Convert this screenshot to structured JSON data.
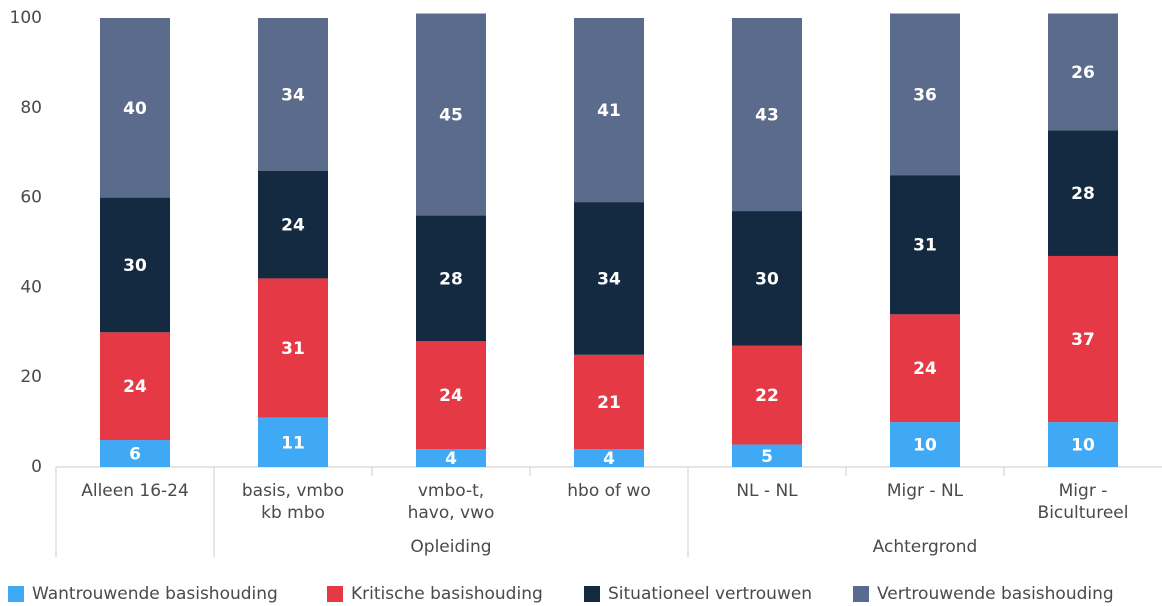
{
  "chart_data": {
    "type": "stacked_bar",
    "categories": [
      "Alleen 16-24",
      "basis, vmbo\nkb mbo",
      "vmbo-t,\nhavo, vwo",
      "hbo of wo",
      "NL - NL",
      "Migr - NL",
      "Migr -\nBicultureel"
    ],
    "groups": [
      {
        "label": "Opleiding",
        "start": 1,
        "end": 3
      },
      {
        "label": "Achtergrond",
        "start": 4,
        "end": 6
      }
    ],
    "series": [
      {
        "name": "Wantrouwende basishouding",
        "color": "#3fa9f5",
        "values": [
          6,
          11,
          4,
          4,
          5,
          10,
          10
        ]
      },
      {
        "name": "Kritische basishouding",
        "color": "#e63946",
        "values": [
          24,
          31,
          24,
          21,
          22,
          24,
          37
        ]
      },
      {
        "name": "Situationeel vertrouwen",
        "color": "#132a40",
        "values": [
          30,
          24,
          28,
          34,
          30,
          31,
          28
        ]
      },
      {
        "name": "Vertrouwende basishouding",
        "color": "#5b6b8c",
        "values": [
          40,
          34,
          45,
          41,
          43,
          36,
          26
        ]
      }
    ],
    "ylim": [
      0,
      100
    ],
    "yticks": [
      0,
      20,
      40,
      60,
      80,
      100
    ],
    "grid": false,
    "legend": "bottom"
  }
}
